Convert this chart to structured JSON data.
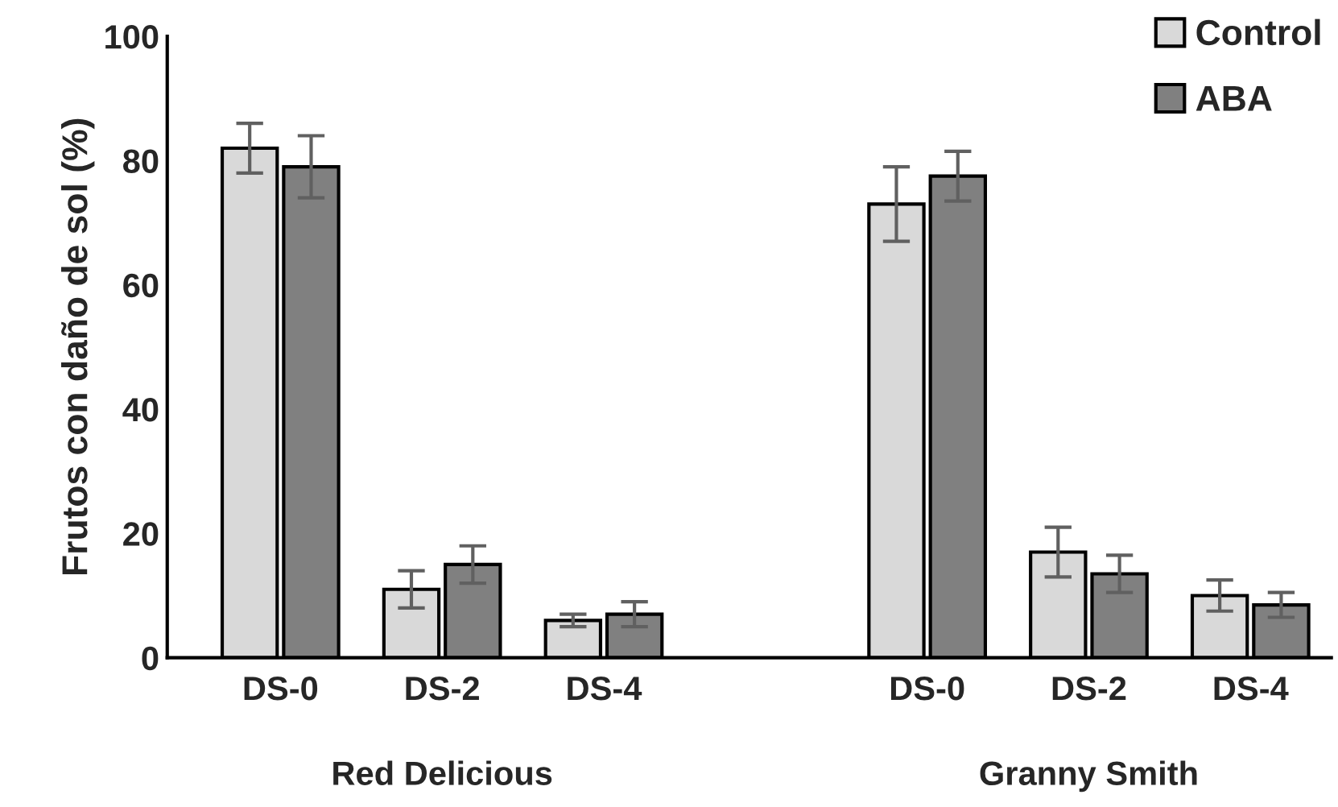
{
  "chart_data": {
    "type": "bar",
    "ylabel": "Frutos con daño de sol (%)",
    "categories": [
      "DS-0",
      "DS-2",
      "DS-4",
      null,
      "DS-0",
      "DS-2",
      "DS-4"
    ],
    "series": [
      {
        "name": "Control",
        "color": "#d9d9d9",
        "values": [
          82,
          11,
          6,
          null,
          73,
          17,
          10
        ],
        "errors": [
          4,
          3,
          1,
          null,
          6,
          4,
          2.5
        ]
      },
      {
        "name": "ABA",
        "color": "#808080",
        "values": [
          79,
          15,
          7,
          null,
          77.5,
          13.5,
          8.5
        ],
        "errors": [
          5,
          3,
          2,
          null,
          4,
          3,
          2
        ]
      }
    ],
    "annotations": [
      "Red Delicious",
      "Granny Smith"
    ],
    "ylim": [
      0,
      100
    ],
    "yticks": [
      0,
      20,
      40,
      60,
      80,
      100
    ],
    "grid": false,
    "legend": "top right"
  }
}
